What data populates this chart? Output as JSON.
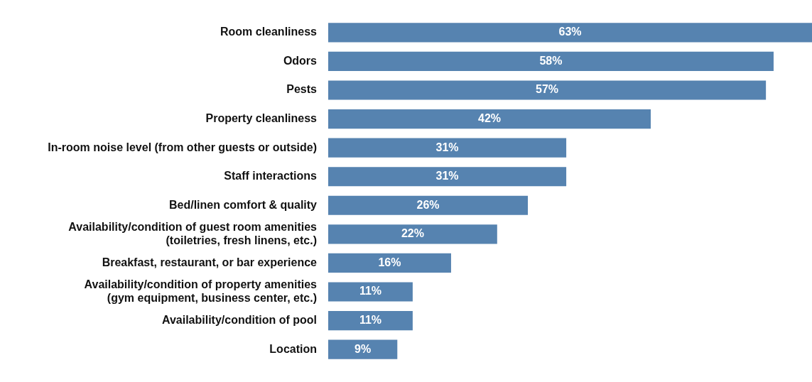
{
  "chart_data": {
    "type": "bar",
    "orientation": "horizontal",
    "color": "#5683b0",
    "categories": [
      "Room cleanliness",
      "Odors",
      "Pests",
      "Property cleanliness",
      "In-room noise level (from other guests or outside)",
      "Staff interactions",
      "Bed/linen comfort & quality",
      "Availability/condition of guest room amenities (toiletries, fresh linens, etc.)",
      "Breakfast, restaurant, or bar experience",
      "Availability/condition of property amenities (gym equipment, business center, etc.)",
      "Availability/condition of pool",
      "Location"
    ],
    "values": [
      63,
      58,
      57,
      42,
      31,
      31,
      26,
      22,
      16,
      11,
      11,
      9
    ],
    "value_labels": [
      "63%",
      "58%",
      "57%",
      "42%",
      "31%",
      "31%",
      "26%",
      "22%",
      "16%",
      "11%",
      "11%",
      "9%"
    ],
    "tick_labels": "y"
  }
}
